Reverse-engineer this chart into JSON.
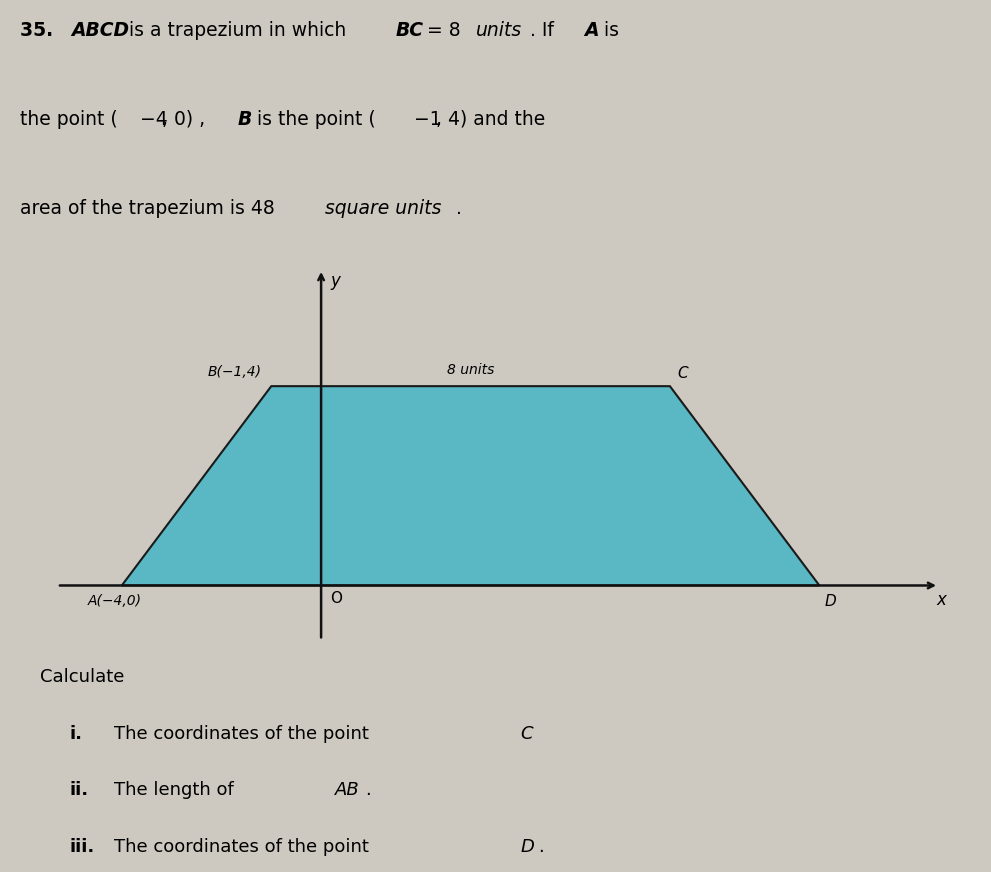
{
  "background_color": "#cdc8c0",
  "trapezium_color": "#5ab8c4",
  "trapezium_alpha": 1.0,
  "A": [
    -4,
    0
  ],
  "B": [
    -1,
    4
  ],
  "C": [
    7,
    4
  ],
  "D": [
    10,
    0
  ],
  "axis_color": "#111111",
  "xlim": [
    -5.5,
    12.5
  ],
  "ylim": [
    -1.2,
    6.5
  ],
  "label_A": "A(−4,0)",
  "label_B": "B(−1,4)",
  "label_C": "C",
  "label_D": "D",
  "label_O": "O",
  "label_x": "x",
  "label_y": "y",
  "label_8units": "8 units",
  "edge_color": "#1a1a1a",
  "line_width": 1.5,
  "font_size_labels": 10,
  "font_size_calc": 13
}
